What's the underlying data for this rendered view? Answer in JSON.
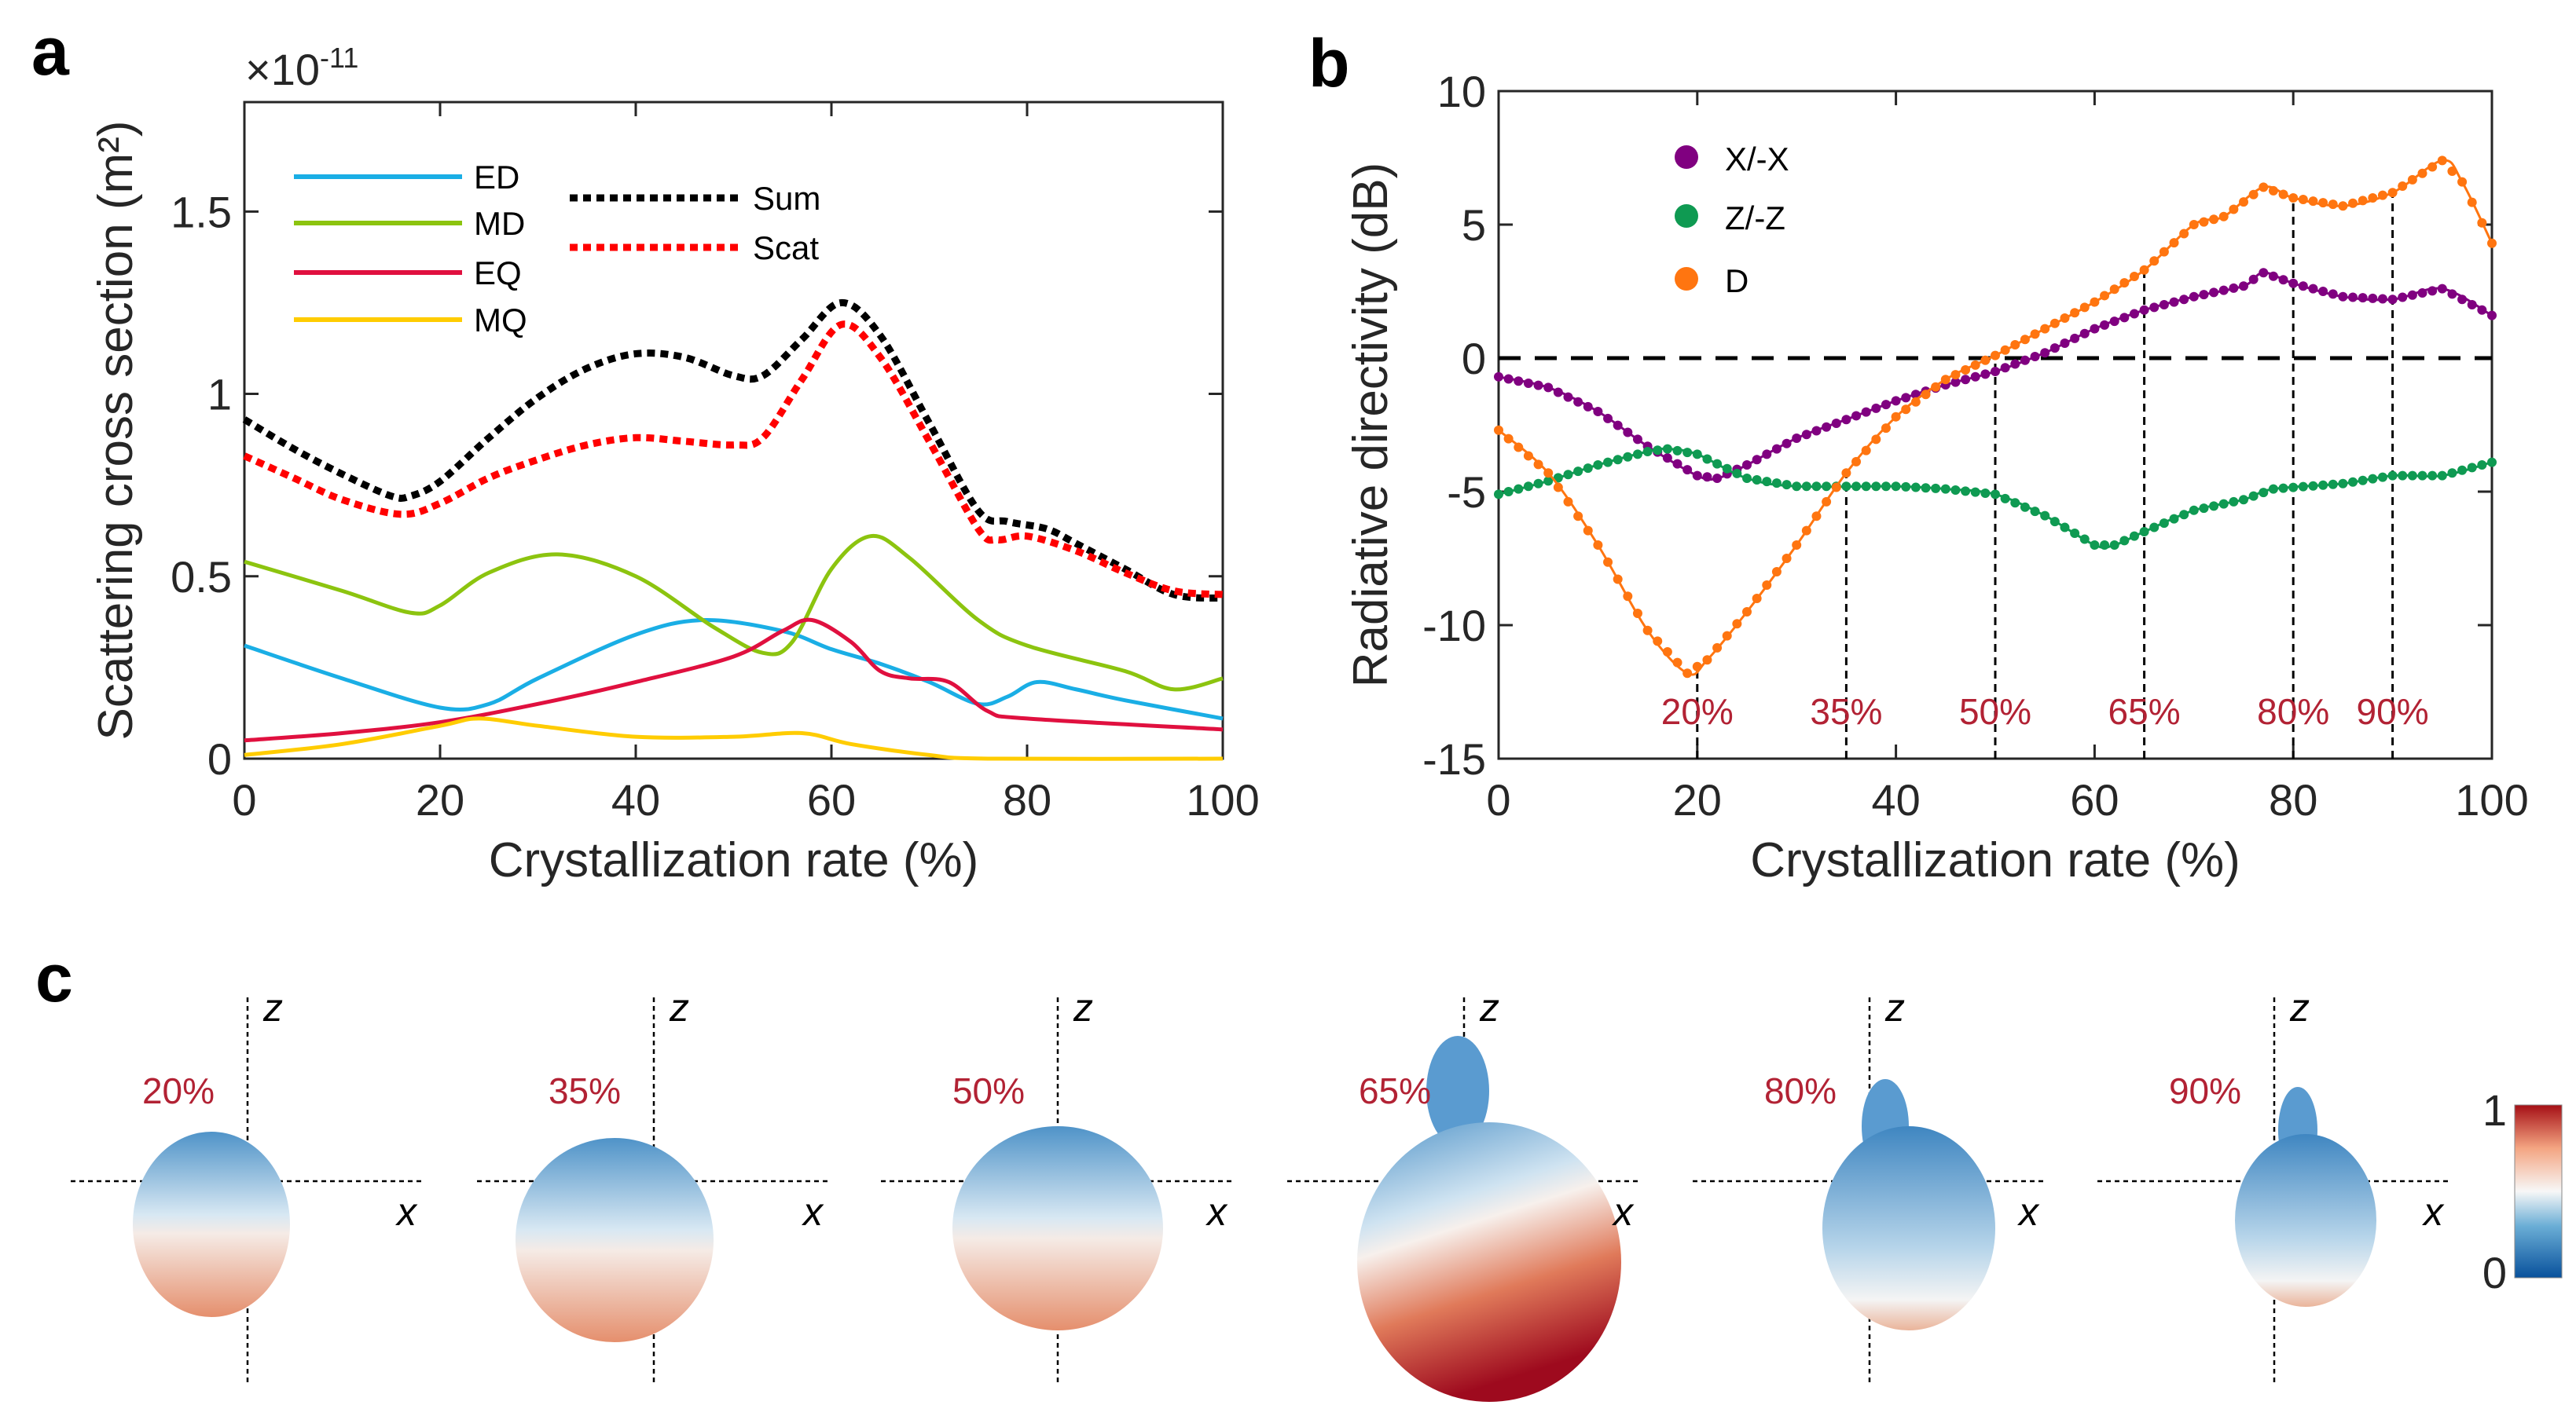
{
  "panels": {
    "a": "a",
    "b": "b",
    "c": "c"
  },
  "chart_data": [
    {
      "type": "line",
      "panel": "a",
      "xlabel": "Crystallization rate (%)",
      "ylabel": "Scattering cross section (m²)",
      "yscale_label": "×10",
      "yscale_exp": "-11",
      "xlim": [
        0,
        100
      ],
      "ylim": [
        0,
        1.8
      ],
      "xticks": [
        0,
        20,
        40,
        60,
        80,
        100
      ],
      "yticks": [
        0,
        0.5,
        1,
        1.5
      ],
      "grid": false,
      "legend_placement": "top-left",
      "series": [
        {
          "name": "ED",
          "color": "#1aaee5",
          "style": "solid",
          "points": [
            [
              0,
              0.31
            ],
            [
              10,
              0.22
            ],
            [
              20,
              0.14
            ],
            [
              25,
              0.15
            ],
            [
              30,
              0.22
            ],
            [
              40,
              0.34
            ],
            [
              47,
              0.38
            ],
            [
              55,
              0.35
            ],
            [
              60,
              0.3
            ],
            [
              65,
              0.26
            ],
            [
              70,
              0.21
            ],
            [
              75,
              0.15
            ],
            [
              78,
              0.17
            ],
            [
              81,
              0.21
            ],
            [
              85,
              0.19
            ],
            [
              90,
              0.16
            ],
            [
              100,
              0.11
            ]
          ]
        },
        {
          "name": "MD",
          "color": "#8cc40f",
          "style": "solid",
          "points": [
            [
              0,
              0.54
            ],
            [
              10,
              0.46
            ],
            [
              17,
              0.4
            ],
            [
              20,
              0.42
            ],
            [
              25,
              0.51
            ],
            [
              32,
              0.56
            ],
            [
              40,
              0.5
            ],
            [
              48,
              0.36
            ],
            [
              53,
              0.29
            ],
            [
              56,
              0.32
            ],
            [
              60,
              0.52
            ],
            [
              64,
              0.61
            ],
            [
              68,
              0.55
            ],
            [
              75,
              0.38
            ],
            [
              80,
              0.31
            ],
            [
              90,
              0.24
            ],
            [
              95,
              0.19
            ],
            [
              100,
              0.22
            ]
          ]
        },
        {
          "name": "EQ",
          "color": "#e0103f",
          "style": "solid",
          "points": [
            [
              0,
              0.05
            ],
            [
              10,
              0.07
            ],
            [
              20,
              0.1
            ],
            [
              30,
              0.15
            ],
            [
              40,
              0.21
            ],
            [
              50,
              0.28
            ],
            [
              55,
              0.35
            ],
            [
              58,
              0.38
            ],
            [
              62,
              0.32
            ],
            [
              65,
              0.24
            ],
            [
              68,
              0.22
            ],
            [
              72,
              0.21
            ],
            [
              76,
              0.13
            ],
            [
              80,
              0.11
            ],
            [
              100,
              0.08
            ]
          ]
        },
        {
          "name": "MQ",
          "color": "#ffcc00",
          "style": "solid",
          "points": [
            [
              0,
              0.01
            ],
            [
              10,
              0.04
            ],
            [
              20,
              0.09
            ],
            [
              24,
              0.11
            ],
            [
              30,
              0.09
            ],
            [
              40,
              0.06
            ],
            [
              50,
              0.06
            ],
            [
              57,
              0.07
            ],
            [
              62,
              0.04
            ],
            [
              70,
              0.01
            ],
            [
              76,
              0.0
            ],
            [
              100,
              0.0
            ]
          ]
        },
        {
          "name": "Sum",
          "color": "#000000",
          "style": "dotted",
          "points": [
            [
              0,
              0.93
            ],
            [
              5,
              0.85
            ],
            [
              10,
              0.78
            ],
            [
              15,
              0.72
            ],
            [
              17,
              0.72
            ],
            [
              20,
              0.76
            ],
            [
              25,
              0.88
            ],
            [
              30,
              0.99
            ],
            [
              35,
              1.07
            ],
            [
              40,
              1.11
            ],
            [
              45,
              1.1
            ],
            [
              50,
              1.05
            ],
            [
              53,
              1.05
            ],
            [
              57,
              1.15
            ],
            [
              61,
              1.25
            ],
            [
              65,
              1.16
            ],
            [
              70,
              0.92
            ],
            [
              75,
              0.68
            ],
            [
              78,
              0.65
            ],
            [
              82,
              0.63
            ],
            [
              85,
              0.59
            ],
            [
              90,
              0.52
            ],
            [
              95,
              0.45
            ],
            [
              100,
              0.44
            ]
          ]
        },
        {
          "name": "Scat",
          "color": "#ff0000",
          "style": "dotted",
          "points": [
            [
              0,
              0.83
            ],
            [
              5,
              0.77
            ],
            [
              10,
              0.71
            ],
            [
              16,
              0.67
            ],
            [
              20,
              0.7
            ],
            [
              25,
              0.77
            ],
            [
              30,
              0.82
            ],
            [
              35,
              0.86
            ],
            [
              40,
              0.88
            ],
            [
              45,
              0.87
            ],
            [
              50,
              0.86
            ],
            [
              53,
              0.88
            ],
            [
              57,
              1.04
            ],
            [
              61,
              1.19
            ],
            [
              65,
              1.1
            ],
            [
              70,
              0.87
            ],
            [
              75,
              0.63
            ],
            [
              77,
              0.6
            ],
            [
              80,
              0.61
            ],
            [
              85,
              0.57
            ],
            [
              90,
              0.51
            ],
            [
              95,
              0.46
            ],
            [
              100,
              0.45
            ]
          ]
        }
      ]
    },
    {
      "type": "line",
      "panel": "b",
      "xlabel": "Crystallization rate (%)",
      "ylabel": "Radiative directivity (dB)",
      "xlim": [
        0,
        100
      ],
      "ylim": [
        -15,
        10
      ],
      "xticks": [
        0,
        20,
        40,
        60,
        80,
        100
      ],
      "yticks": [
        -15,
        -10,
        -5,
        0,
        5,
        10
      ],
      "grid": false,
      "legend_placement": "top-left",
      "reference_line": 0,
      "markers": [
        20,
        35,
        50,
        65,
        80,
        90
      ],
      "marker_labels": [
        "20%",
        "35%",
        "50%",
        "65%",
        "80%",
        "90%"
      ],
      "marker_color": "#b22234",
      "series": [
        {
          "name": "X/-X",
          "color": "#800080",
          "points": [
            [
              0,
              -0.7
            ],
            [
              5,
              -1.1
            ],
            [
              10,
              -2.0
            ],
            [
              15,
              -3.3
            ],
            [
              20,
              -4.4
            ],
            [
              22,
              -4.5
            ],
            [
              25,
              -4.0
            ],
            [
              30,
              -3.0
            ],
            [
              35,
              -2.3
            ],
            [
              40,
              -1.6
            ],
            [
              45,
              -1.0
            ],
            [
              50,
              -0.5
            ],
            [
              55,
              0.2
            ],
            [
              60,
              1.1
            ],
            [
              65,
              1.8
            ],
            [
              70,
              2.3
            ],
            [
              75,
              2.7
            ],
            [
              77,
              3.2
            ],
            [
              80,
              2.8
            ],
            [
              85,
              2.3
            ],
            [
              90,
              2.2
            ],
            [
              95,
              2.6
            ],
            [
              100,
              1.6
            ]
          ]
        },
        {
          "name": "Z/-Z",
          "color": "#0f9a52",
          "points": [
            [
              0,
              -5.1
            ],
            [
              5,
              -4.6
            ],
            [
              10,
              -4.0
            ],
            [
              15,
              -3.5
            ],
            [
              17,
              -3.4
            ],
            [
              20,
              -3.6
            ],
            [
              25,
              -4.5
            ],
            [
              30,
              -4.8
            ],
            [
              40,
              -4.8
            ],
            [
              45,
              -4.9
            ],
            [
              50,
              -5.1
            ],
            [
              55,
              -5.9
            ],
            [
              60,
              -7.0
            ],
            [
              62,
              -7.0
            ],
            [
              65,
              -6.5
            ],
            [
              70,
              -5.7
            ],
            [
              75,
              -5.3
            ],
            [
              78,
              -4.9
            ],
            [
              85,
              -4.7
            ],
            [
              90,
              -4.4
            ],
            [
              95,
              -4.4
            ],
            [
              100,
              -3.9
            ]
          ]
        },
        {
          "name": "D",
          "color": "#ff7510",
          "points": [
            [
              0,
              -2.7
            ],
            [
              5,
              -4.3
            ],
            [
              10,
              -7.0
            ],
            [
              15,
              -10.2
            ],
            [
              19,
              -11.8
            ],
            [
              21,
              -11.3
            ],
            [
              25,
              -9.5
            ],
            [
              30,
              -7.0
            ],
            [
              35,
              -4.3
            ],
            [
              40,
              -2.2
            ],
            [
              45,
              -0.8
            ],
            [
              50,
              0.1
            ],
            [
              55,
              1.1
            ],
            [
              60,
              2.1
            ],
            [
              65,
              3.3
            ],
            [
              70,
              5.0
            ],
            [
              73,
              5.3
            ],
            [
              77,
              6.4
            ],
            [
              80,
              6.0
            ],
            [
              85,
              5.7
            ],
            [
              90,
              6.2
            ],
            [
              95,
              7.4
            ],
            [
              97,
              6.6
            ],
            [
              100,
              4.3
            ]
          ]
        }
      ]
    }
  ],
  "panel_c": {
    "axis_x": "x",
    "axis_z": "z",
    "patterns": [
      {
        "label": "20%"
      },
      {
        "label": "35%"
      },
      {
        "label": "50%"
      },
      {
        "label": "65%"
      },
      {
        "label": "80%"
      },
      {
        "label": "90%"
      }
    ],
    "colorbar": {
      "max_label": "1",
      "min_label": "0",
      "colors": [
        "#08519c",
        "#6baed6",
        "#f7f7f7",
        "#f4a582",
        "#a50f15"
      ]
    }
  }
}
